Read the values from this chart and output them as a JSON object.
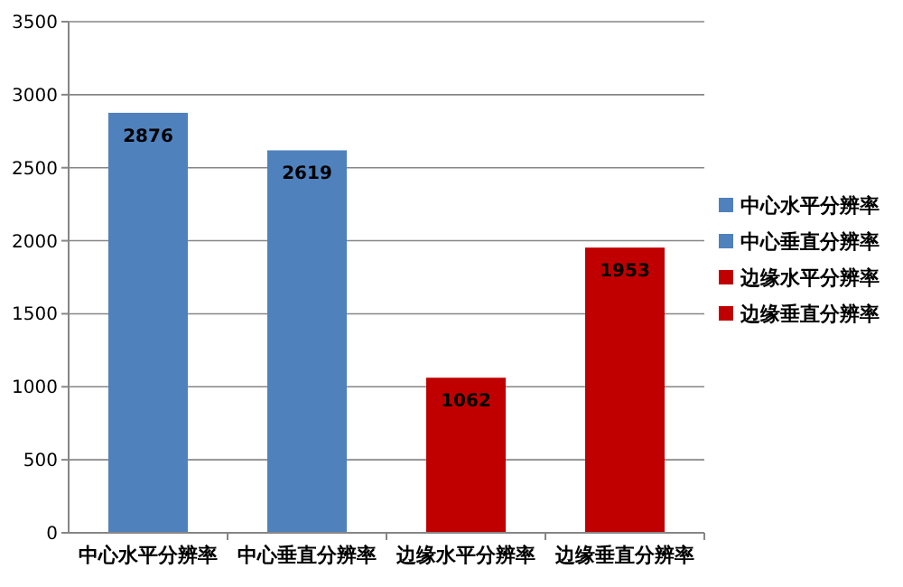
{
  "chart_data": {
    "type": "bar",
    "categories": [
      "中心水平分辨率",
      "中心垂直分辨率",
      "边缘水平分辨率",
      "边缘垂直分辨率"
    ],
    "series": [
      {
        "name": "中心水平分辨率",
        "color": "#4f81bd",
        "values": [
          2876,
          null,
          null,
          null
        ]
      },
      {
        "name": "中心垂直分辨率",
        "color": "#4f81bd",
        "values": [
          null,
          2619,
          null,
          null
        ]
      },
      {
        "name": "边缘水平分辨率",
        "color": "#c00000",
        "values": [
          null,
          null,
          1062,
          null
        ]
      },
      {
        "name": "边缘垂直分辨率",
        "color": "#c00000",
        "values": [
          null,
          null,
          null,
          1953
        ]
      }
    ],
    "ylim": [
      0,
      3500
    ],
    "yticks": [
      0,
      500,
      1000,
      1500,
      2000,
      2500,
      3000,
      3500
    ],
    "grid": "y",
    "legend": "right",
    "data_labels": true
  }
}
